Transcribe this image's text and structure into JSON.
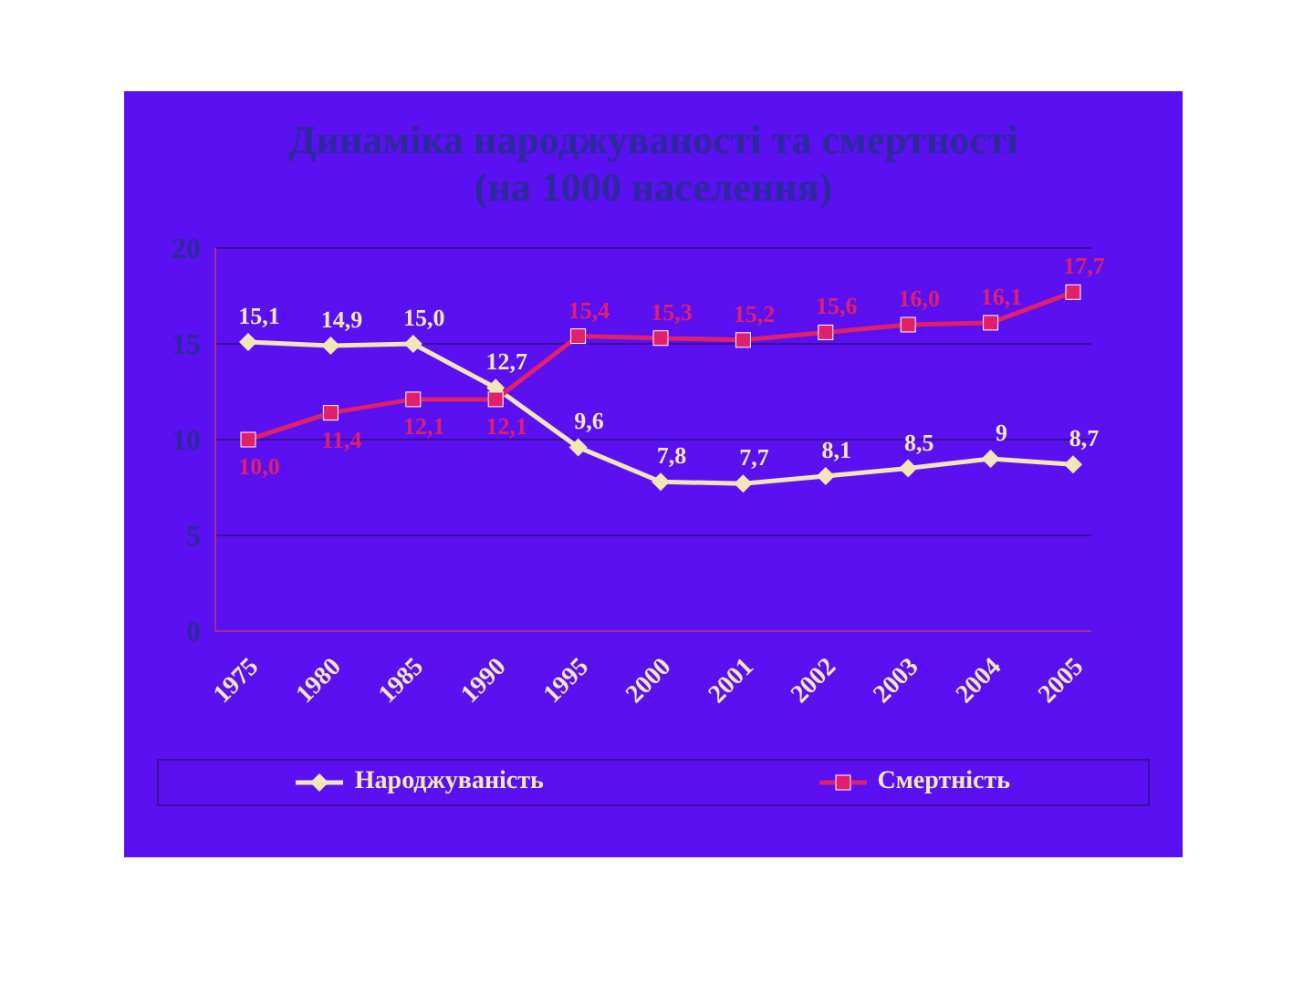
{
  "chart_data": {
    "type": "line",
    "title": "Динаміка народжуваності та смертності",
    "subtitle": "(на 1000 населення)",
    "categories": [
      "1975",
      "1980",
      "1985",
      "1990",
      "1995",
      "2000",
      "2001",
      "2002",
      "2003",
      "2004",
      "2005"
    ],
    "series": [
      {
        "name": "Народжуваність",
        "color": "#f2e6b8",
        "marker": "diamond",
        "values": [
          15.1,
          14.9,
          15.0,
          12.7,
          9.6,
          7.8,
          7.7,
          8.1,
          8.5,
          9,
          8.7
        ],
        "value_labels": [
          "15,1",
          "14,9",
          "15,0",
          "12,7",
          "9,6",
          "7,8",
          "7,7",
          "8,1",
          "8,5",
          "9",
          "8,7"
        ]
      },
      {
        "name": "Смертність",
        "color": "#e0206a",
        "marker": "square",
        "values": [
          10.0,
          11.4,
          12.1,
          12.1,
          15.4,
          15.3,
          15.2,
          15.6,
          16.0,
          16.1,
          17.7
        ],
        "value_labels": [
          "10,0",
          "11,4",
          "12,1",
          "12,1",
          "15,4",
          "15,3",
          "15,2",
          "15,6",
          "16,0",
          "16,1",
          "17,7"
        ]
      }
    ],
    "ylim": [
      0,
      20
    ],
    "yticks": [
      0,
      5,
      10,
      15,
      20
    ],
    "grid": "y",
    "legend": "bottom"
  }
}
